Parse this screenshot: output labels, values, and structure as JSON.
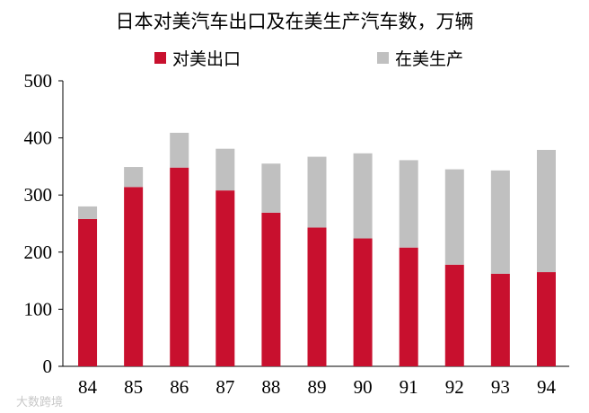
{
  "watermark": "大数跨境",
  "chart_data": {
    "type": "bar",
    "stacked": true,
    "title": "日本对美汽车出口及在美生产汽车数，万辆",
    "xlabel": "",
    "ylabel": "",
    "categories": [
      "84",
      "85",
      "86",
      "87",
      "88",
      "89",
      "90",
      "91",
      "92",
      "93",
      "94"
    ],
    "series": [
      {
        "name": "对美出口",
        "color": "#c8102e",
        "values": [
          258,
          314,
          348,
          308,
          269,
          243,
          224,
          208,
          178,
          162,
          165
        ]
      },
      {
        "name": "在美生产",
        "color": "#c0c0c0",
        "values": [
          22,
          35,
          61,
          73,
          86,
          124,
          149,
          153,
          167,
          181,
          214
        ]
      }
    ],
    "ylim": [
      0,
      500
    ],
    "yticks": [
      0,
      100,
      200,
      300,
      400,
      500
    ],
    "grid": false,
    "legend": "top"
  }
}
